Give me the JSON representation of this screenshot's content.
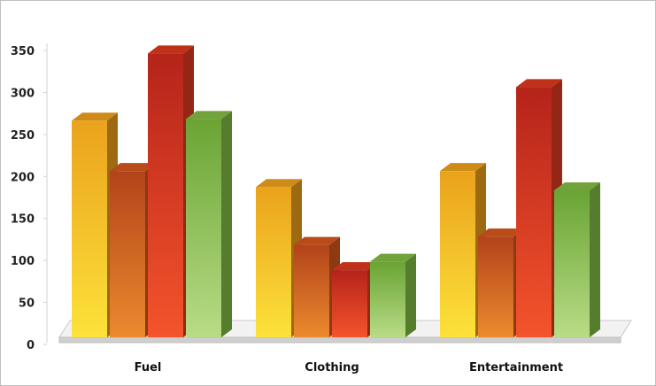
{
  "chart_data": {
    "type": "bar",
    "style": "3d-clustered-column",
    "categories": [
      "Fuel",
      "Clothing",
      "Entertainment"
    ],
    "series": [
      {
        "values": [
          258,
          179,
          198
        ],
        "color": "#f2a31c"
      },
      {
        "values": [
          198,
          110,
          120
        ],
        "color": "#d9581c"
      },
      {
        "values": [
          338,
          80,
          298
        ],
        "color": "#e23a1e"
      },
      {
        "values": [
          260,
          90,
          175
        ],
        "color": "#85bf45"
      }
    ],
    "ylim": [
      0,
      350
    ],
    "yticks": [
      "0",
      "50",
      "100",
      "150",
      "200",
      "250",
      "300",
      "350"
    ],
    "title": "",
    "xlabel": "",
    "ylabel": "",
    "grid": false,
    "legend": "none"
  }
}
